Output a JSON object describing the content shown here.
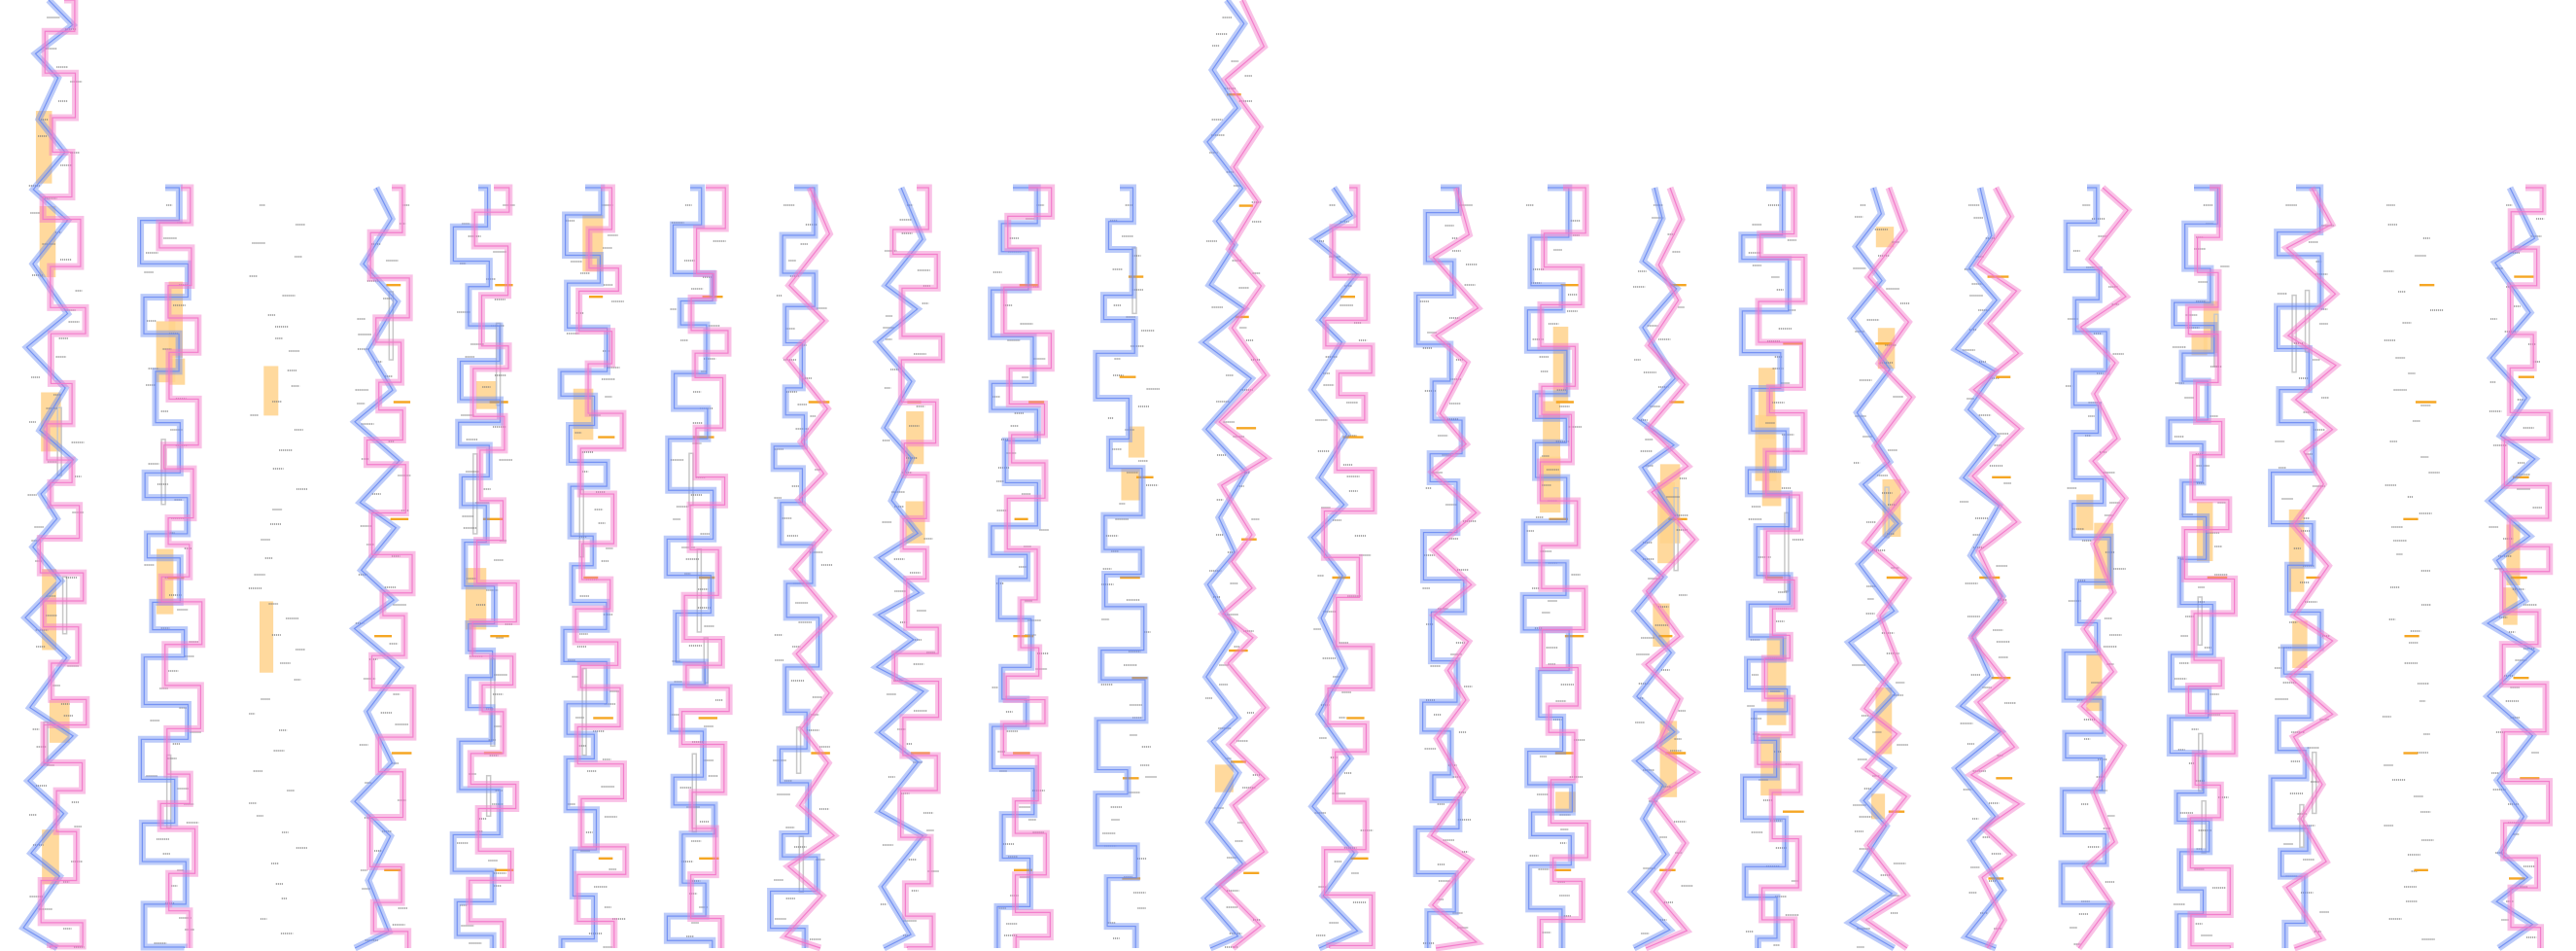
{
  "diagram": {
    "type": "multi-column strand trace",
    "column_count": 24,
    "colors": {
      "blue_strand": "#6b8cf2",
      "pink_strand": "#f276c8",
      "highlight_block": "#ffd28c",
      "orange_tick": "#f5a623",
      "gray_bar": "#c8c8c8",
      "label_text": "#777777"
    },
    "labels_legible": false,
    "columns": [
      {
        "id": "c01",
        "strands": [
          "blue",
          "pink"
        ],
        "highlight_blocks": 6,
        "orange_ticks": 0,
        "gray_bars": 3
      },
      {
        "id": "c02",
        "strands": [
          "blue",
          "pink"
        ],
        "highlight_blocks": 4,
        "orange_ticks": 1,
        "gray_bars": 2
      },
      {
        "id": "c03",
        "strands": [],
        "highlight_blocks": 2,
        "orange_ticks": 0,
        "gray_bars": 0
      },
      {
        "id": "c04",
        "strands": [
          "blue",
          "pink"
        ],
        "highlight_blocks": 0,
        "orange_ticks": 6,
        "gray_bars": 1
      },
      {
        "id": "c05",
        "strands": [
          "blue",
          "pink"
        ],
        "highlight_blocks": 2,
        "orange_ticks": 6,
        "gray_bars": 4
      },
      {
        "id": "c06",
        "strands": [
          "blue",
          "pink"
        ],
        "highlight_blocks": 2,
        "orange_ticks": 5,
        "gray_bars": 2
      },
      {
        "id": "c07",
        "strands": [
          "blue",
          "pink"
        ],
        "highlight_blocks": 0,
        "orange_ticks": 5,
        "gray_bars": 4
      },
      {
        "id": "c08",
        "strands": [
          "blue",
          "pink"
        ],
        "highlight_blocks": 0,
        "orange_ticks": 2,
        "gray_bars": 2
      },
      {
        "id": "c09",
        "strands": [
          "blue",
          "pink"
        ],
        "highlight_blocks": 2,
        "orange_ticks": 2,
        "gray_bars": 0
      },
      {
        "id": "c10",
        "strands": [
          "blue",
          "pink"
        ],
        "highlight_blocks": 0,
        "orange_ticks": 6,
        "gray_bars": 0
      },
      {
        "id": "c11",
        "strands": [
          "blue"
        ],
        "highlight_blocks": 2,
        "orange_ticks": 7,
        "gray_bars": 1
      },
      {
        "id": "c12",
        "strands": [
          "blue",
          "pink"
        ],
        "highlight_blocks": 1,
        "orange_ticks": 8,
        "gray_bars": 0
      },
      {
        "id": "c13",
        "strands": [
          "blue",
          "pink"
        ],
        "highlight_blocks": 0,
        "orange_ticks": 5,
        "gray_bars": 0
      },
      {
        "id": "c14",
        "strands": [
          "blue",
          "pink"
        ],
        "highlight_blocks": 0,
        "orange_ticks": 0,
        "gray_bars": 0
      },
      {
        "id": "c15",
        "strands": [
          "blue",
          "pink"
        ],
        "highlight_blocks": 4,
        "orange_ticks": 6,
        "gray_bars": 0
      },
      {
        "id": "c16",
        "strands": [
          "blue",
          "pink"
        ],
        "highlight_blocks": 4,
        "orange_ticks": 6,
        "gray_bars": 1
      },
      {
        "id": "c17",
        "strands": [
          "blue",
          "pink"
        ],
        "highlight_blocks": 5,
        "orange_ticks": 3,
        "gray_bars": 1
      },
      {
        "id": "c18",
        "strands": [
          "blue",
          "pink"
        ],
        "highlight_blocks": 5,
        "orange_ticks": 3,
        "gray_bars": 1
      },
      {
        "id": "c19",
        "strands": [
          "blue",
          "pink"
        ],
        "highlight_blocks": 0,
        "orange_ticks": 7,
        "gray_bars": 0
      },
      {
        "id": "c20",
        "strands": [
          "blue",
          "pink"
        ],
        "highlight_blocks": 3,
        "orange_ticks": 0,
        "gray_bars": 0
      },
      {
        "id": "c21",
        "strands": [
          "blue",
          "pink"
        ],
        "highlight_blocks": 3,
        "orange_ticks": 1,
        "gray_bars": 4
      },
      {
        "id": "c22",
        "strands": [
          "blue",
          "pink"
        ],
        "highlight_blocks": 2,
        "orange_ticks": 1,
        "gray_bars": 4
      },
      {
        "id": "c23",
        "strands": [],
        "highlight_blocks": 0,
        "orange_ticks": 6,
        "gray_bars": 0
      },
      {
        "id": "c24",
        "strands": [
          "blue",
          "pink"
        ],
        "highlight_blocks": 2,
        "orange_ticks": 7,
        "gray_bars": 0
      }
    ]
  }
}
